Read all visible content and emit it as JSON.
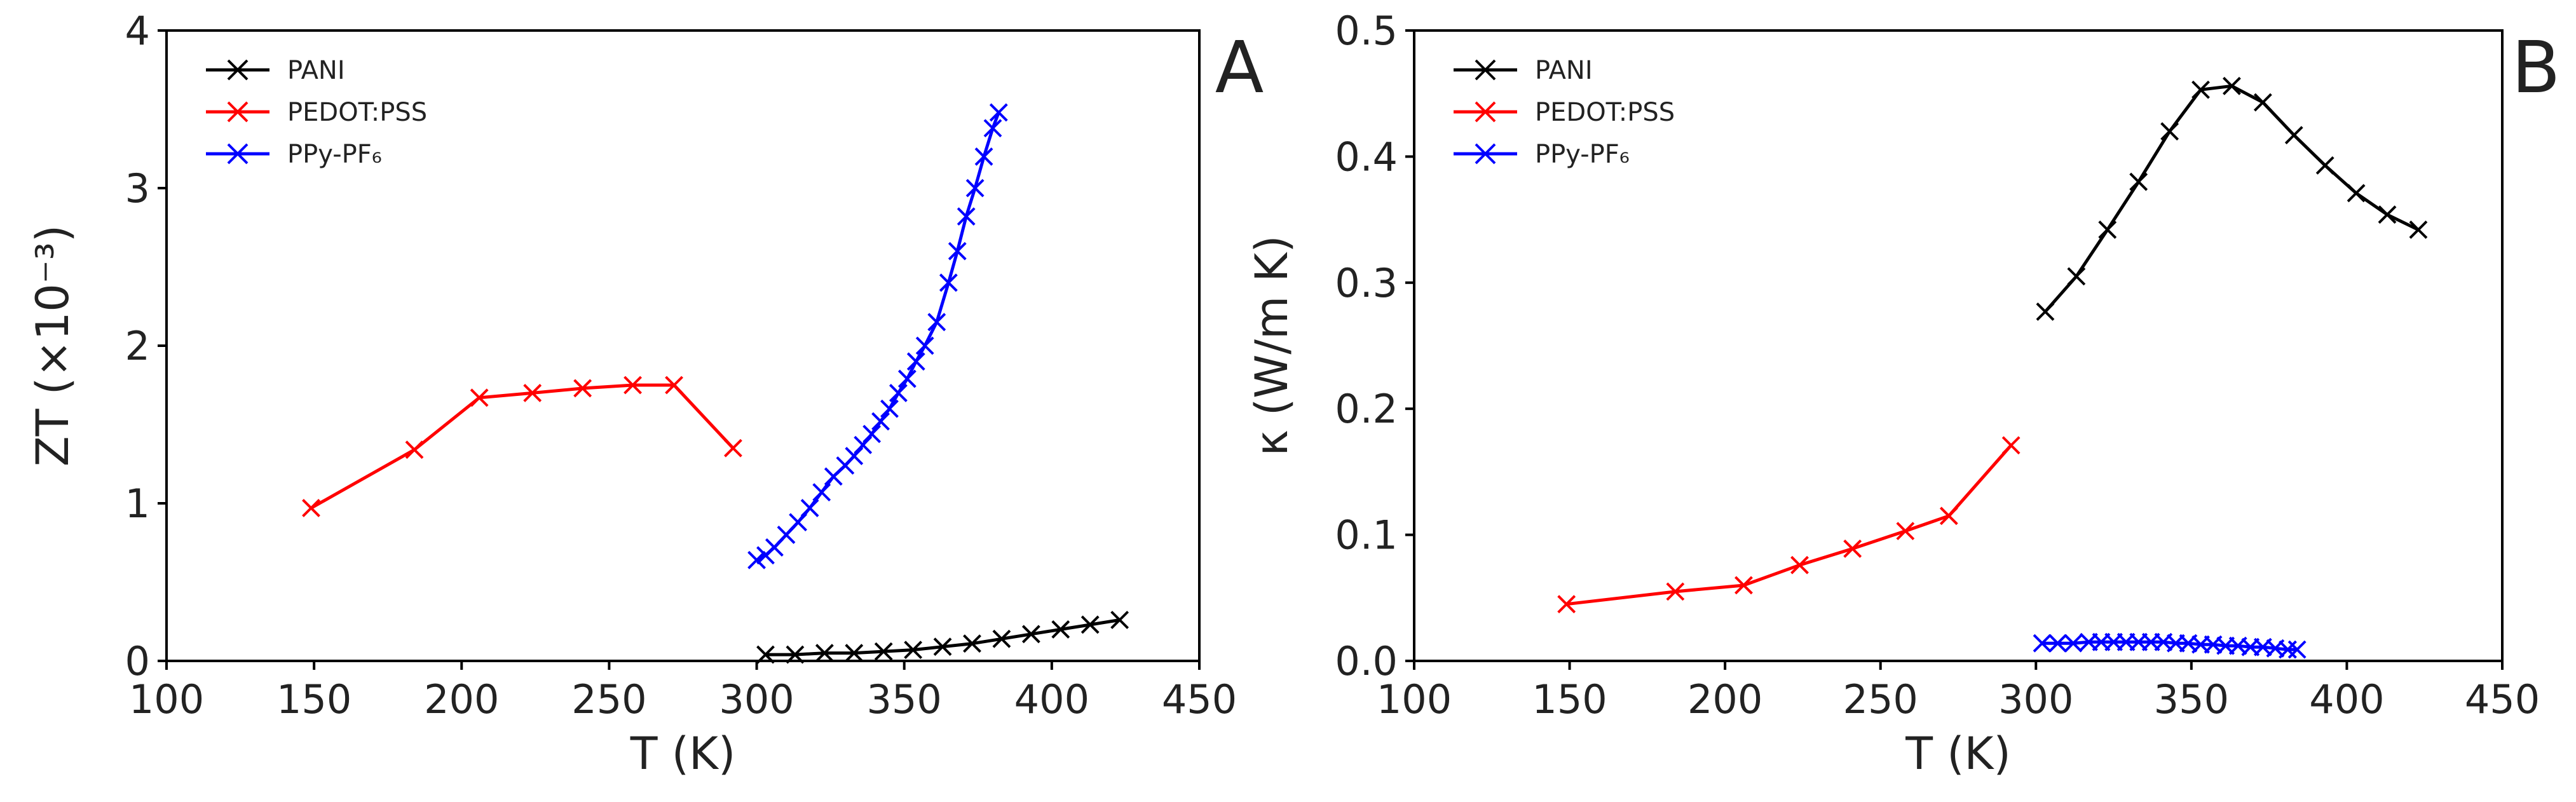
{
  "chart_data": [
    {
      "type": "line",
      "panel_label": "A",
      "xlabel": "T (K)",
      "ylabel": "ZT (×10⁻³)",
      "xlim": [
        100,
        450
      ],
      "ylim": [
        0,
        4
      ],
      "xticks": [
        "100",
        "150",
        "200",
        "250",
        "300",
        "350",
        "400",
        "450"
      ],
      "yticks": [
        "0",
        "1",
        "2",
        "3",
        "4"
      ],
      "legend_position": "top-left",
      "series": [
        {
          "name": "PANI",
          "color": "#000000",
          "marker": "x",
          "x": [
            303,
            313,
            323,
            333,
            343,
            353,
            363,
            373,
            383,
            393,
            403,
            413,
            423
          ],
          "y": [
            0.04,
            0.04,
            0.05,
            0.05,
            0.06,
            0.07,
            0.09,
            0.11,
            0.14,
            0.17,
            0.2,
            0.23,
            0.26
          ]
        },
        {
          "name": "PEDOT:PSS",
          "color": "#ff0000",
          "marker": "x",
          "x": [
            149,
            184,
            206,
            224,
            241,
            258,
            272,
            292
          ],
          "y": [
            0.97,
            1.34,
            1.67,
            1.7,
            1.73,
            1.75,
            1.75,
            1.35
          ]
        },
        {
          "name": "PPy-PF₆",
          "color": "#0000ff",
          "marker": "x",
          "x": [
            300,
            303,
            306,
            310,
            314,
            318,
            322,
            326,
            330,
            333,
            336,
            339,
            342,
            345,
            348,
            351,
            354,
            357,
            361,
            365,
            368,
            371,
            374,
            377,
            380,
            382
          ],
          "y": [
            0.64,
            0.67,
            0.72,
            0.8,
            0.88,
            0.97,
            1.07,
            1.17,
            1.24,
            1.3,
            1.37,
            1.44,
            1.52,
            1.6,
            1.7,
            1.79,
            1.9,
            2.0,
            2.15,
            2.4,
            2.6,
            2.82,
            3.0,
            3.2,
            3.38,
            3.48
          ]
        }
      ]
    },
    {
      "type": "line",
      "panel_label": "B",
      "xlabel": "T (K)",
      "ylabel": "κ (W/m K)",
      "xlim": [
        100,
        450
      ],
      "ylim": [
        0,
        0.5
      ],
      "xticks": [
        "100",
        "150",
        "200",
        "250",
        "300",
        "350",
        "400",
        "450"
      ],
      "yticks": [
        "0.0",
        "0.1",
        "0.2",
        "0.3",
        "0.4",
        "0.5"
      ],
      "legend_position": "top-left",
      "series": [
        {
          "name": "PANI",
          "color": "#000000",
          "marker": "x",
          "x": [
            303,
            313,
            323,
            333,
            343,
            353,
            363,
            373,
            383,
            393,
            403,
            413,
            423
          ],
          "y": [
            0.277,
            0.305,
            0.342,
            0.38,
            0.42,
            0.453,
            0.456,
            0.443,
            0.417,
            0.393,
            0.371,
            0.354,
            0.342
          ]
        },
        {
          "name": "PEDOT:PSS",
          "color": "#ff0000",
          "marker": "x",
          "x": [
            149,
            184,
            206,
            224,
            241,
            258,
            272,
            292
          ],
          "y": [
            0.045,
            0.055,
            0.06,
            0.076,
            0.089,
            0.103,
            0.115,
            0.171
          ]
        },
        {
          "name": "PPy-PF₆",
          "color": "#0000ff",
          "marker": "x",
          "x": [
            302,
            307,
            312,
            317,
            321,
            325,
            329,
            333,
            337,
            341,
            345,
            349,
            353,
            357,
            361,
            365,
            369,
            373,
            377,
            381,
            384
          ],
          "y": [
            0.014,
            0.014,
            0.014,
            0.015,
            0.015,
            0.015,
            0.015,
            0.015,
            0.015,
            0.015,
            0.014,
            0.014,
            0.013,
            0.013,
            0.012,
            0.012,
            0.011,
            0.011,
            0.01,
            0.009,
            0.009
          ]
        }
      ]
    }
  ]
}
